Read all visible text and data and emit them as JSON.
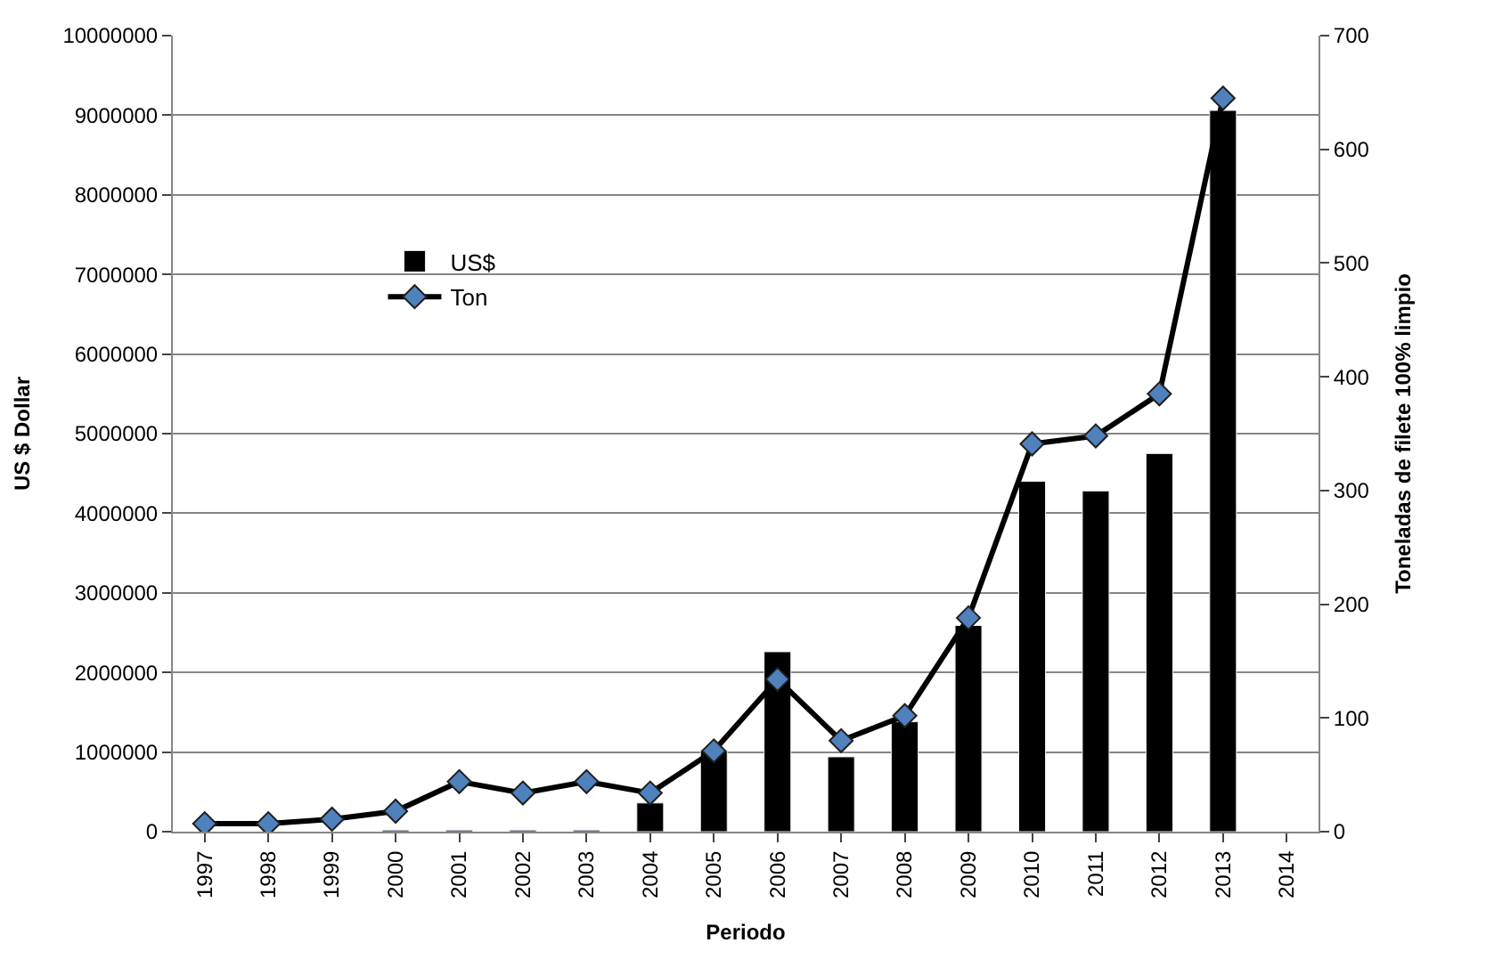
{
  "chart_data": {
    "type": "bar",
    "xlabel": "Periodo",
    "ylabel": "US $ Dollar",
    "y2label": "Toneladas de filete 100% limpio",
    "categories": [
      "1997",
      "1998",
      "1999",
      "2000",
      "2001",
      "2002",
      "2003",
      "2004",
      "2005",
      "2006",
      "2007",
      "2008",
      "2009",
      "2010",
      "2011",
      "2012",
      "2013",
      "2014"
    ],
    "series": [
      {
        "name": "US$",
        "color": "#000000",
        "values": [
          null,
          null,
          null,
          20000,
          20000,
          20000,
          20000,
          360000,
          1020000,
          2260000,
          940000,
          1380000,
          2590000,
          4400000,
          4280000,
          4750000,
          9060000,
          null
        ]
      },
      {
        "name": "Ton",
        "type": "line",
        "axis": "y2",
        "color": "#4f81bd",
        "marker": "diamond",
        "values": [
          7,
          7,
          11,
          18,
          44,
          34,
          44,
          34,
          71,
          134,
          80,
          102,
          188,
          341,
          348,
          385,
          645,
          null
        ]
      }
    ],
    "ylim": [
      0,
      10000000
    ],
    "yticks": [
      0,
      1000000,
      2000000,
      3000000,
      4000000,
      5000000,
      6000000,
      7000000,
      8000000,
      9000000,
      10000000
    ],
    "y2lim": [
      0,
      700
    ],
    "y2ticks": [
      0,
      100,
      200,
      300,
      400,
      500,
      600,
      700
    ],
    "grid": "y",
    "legend": "top left"
  }
}
